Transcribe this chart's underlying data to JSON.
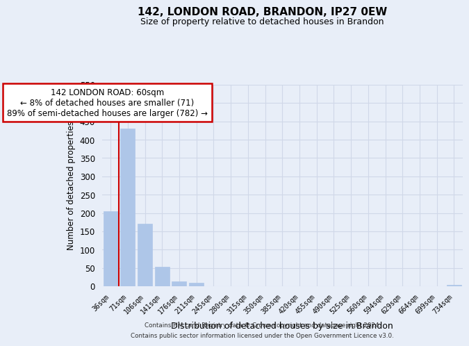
{
  "title": "142, LONDON ROAD, BRANDON, IP27 0EW",
  "subtitle": "Size of property relative to detached houses in Brandon",
  "xlabel": "Distribution of detached houses by size in Brandon",
  "ylabel": "Number of detached properties",
  "bin_labels": [
    "36sqm",
    "71sqm",
    "106sqm",
    "141sqm",
    "176sqm",
    "211sqm",
    "245sqm",
    "280sqm",
    "315sqm",
    "350sqm",
    "385sqm",
    "420sqm",
    "455sqm",
    "490sqm",
    "525sqm",
    "560sqm",
    "594sqm",
    "629sqm",
    "664sqm",
    "699sqm",
    "734sqm"
  ],
  "bar_heights": [
    205,
    430,
    170,
    53,
    13,
    9,
    0,
    0,
    0,
    0,
    0,
    0,
    0,
    0,
    0,
    0,
    0,
    0,
    0,
    0,
    3
  ],
  "bar_color": "#aec6e8",
  "highlight_line_color": "#cc0000",
  "ylim": [
    0,
    550
  ],
  "yticks": [
    0,
    50,
    100,
    150,
    200,
    250,
    300,
    350,
    400,
    450,
    500,
    550
  ],
  "annotation_title": "142 LONDON ROAD: 60sqm",
  "annotation_line1": "← 8% of detached houses are smaller (71)",
  "annotation_line2": "89% of semi-detached houses are larger (782) →",
  "annotation_box_color": "#ffffff",
  "annotation_box_edge": "#cc0000",
  "grid_color": "#d0d8e8",
  "background_color": "#e8eef8",
  "footer_line1": "Contains HM Land Registry data © Crown copyright and database right 2024.",
  "footer_line2": "Contains public sector information licensed under the Open Government Licence v3.0."
}
